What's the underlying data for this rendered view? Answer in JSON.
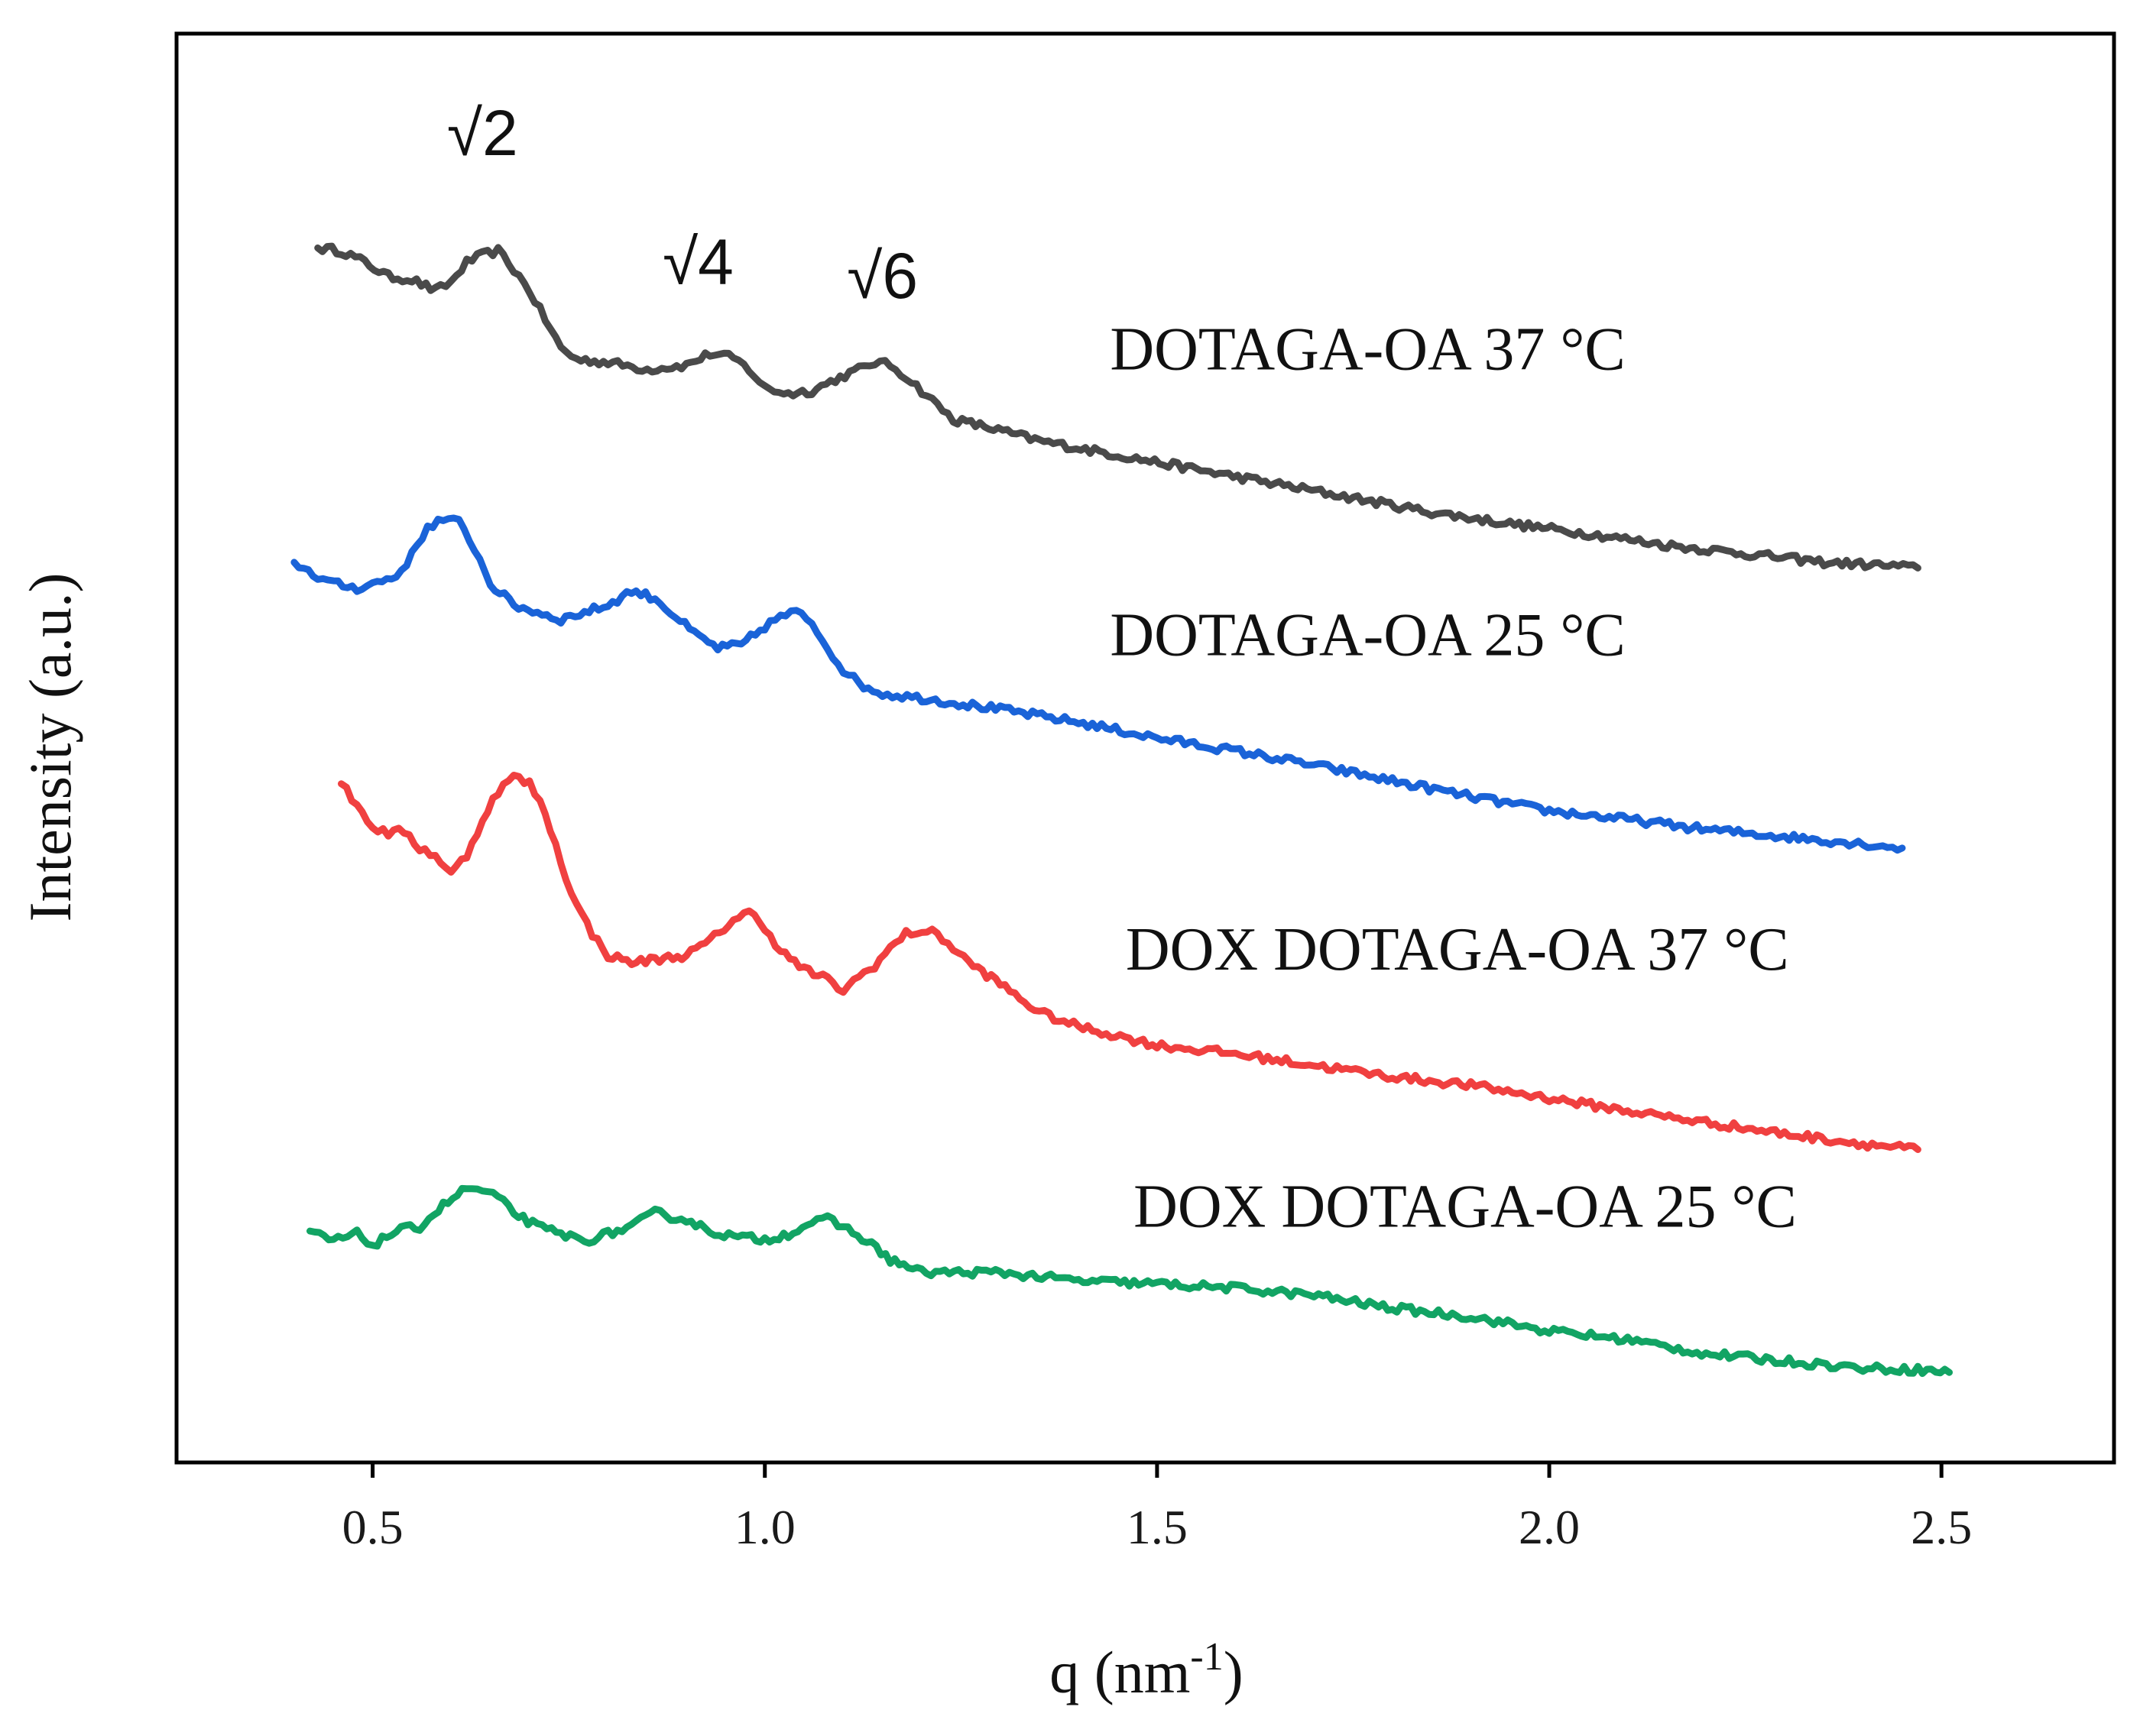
{
  "chart_data": {
    "type": "line",
    "title": "",
    "xlabel": "q (nm",
    "xlabel_sup": "-1",
    "xlabel_close": ")",
    "ylabel": "Intensity (a.u.)",
    "xlim": [
      0.25,
      2.72
    ],
    "ylim": [
      0,
      100
    ],
    "xticks": [
      0.5,
      1.0,
      1.5,
      2.0,
      2.5
    ],
    "xtick_labels": [
      "0.5",
      "1.0",
      "1.5",
      "2.0",
      "2.5"
    ],
    "yticks_shown": false,
    "grid": false,
    "legend": "none",
    "annotations": [
      {
        "text": "√2",
        "x": 0.64,
        "y": 91.5
      },
      {
        "text": "√4",
        "x": 0.915,
        "y": 82.5
      },
      {
        "text": "√6",
        "x": 1.15,
        "y": 81.5
      }
    ],
    "series": [
      {
        "name": "DOTAGA-OA 37 °C",
        "label": "DOTAGA-OA 37 °C",
        "color": "#4a4a4a",
        "label_pos": [
          1.44,
          76.5
        ],
        "x": [
          0.43,
          0.46,
          0.49,
          0.52,
          0.55,
          0.58,
          0.6,
          0.62,
          0.64,
          0.66,
          0.68,
          0.7,
          0.72,
          0.74,
          0.76,
          0.8,
          0.85,
          0.9,
          0.93,
          0.96,
          0.98,
          1.0,
          1.03,
          1.06,
          1.09,
          1.12,
          1.14,
          1.16,
          1.18,
          1.2,
          1.22,
          1.24,
          1.28,
          1.35,
          1.45,
          1.55,
          1.65,
          1.75,
          1.85,
          1.95,
          2.05,
          2.15,
          2.25,
          2.35,
          2.42,
          2.47
        ],
        "y": [
          85.0,
          84.8,
          84.0,
          83.0,
          82.8,
          82.0,
          82.6,
          84.0,
          84.5,
          84.8,
          83.5,
          82.0,
          80.0,
          78.0,
          77.2,
          77.0,
          76.5,
          76.8,
          77.6,
          77.3,
          76.5,
          75.2,
          74.8,
          75.0,
          75.8,
          76.5,
          77.0,
          76.8,
          76.0,
          75.0,
          74.0,
          73.0,
          72.5,
          71.5,
          70.5,
          69.5,
          68.5,
          67.5,
          66.5,
          65.7,
          65.0,
          64.2,
          63.6,
          63.0,
          62.8,
          62.6
        ]
      },
      {
        "name": "DOTAGA-OA 25 °C",
        "label": "DOTAGA-OA 25 °C",
        "color": "#1a63d8",
        "label_pos": [
          1.44,
          56.5
        ],
        "x": [
          0.4,
          0.43,
          0.45,
          0.48,
          0.5,
          0.53,
          0.55,
          0.57,
          0.59,
          0.61,
          0.63,
          0.65,
          0.68,
          0.71,
          0.74,
          0.77,
          0.8,
          0.83,
          0.86,
          0.88,
          0.91,
          0.94,
          0.97,
          1.0,
          1.02,
          1.04,
          1.06,
          1.08,
          1.1,
          1.12,
          1.15,
          1.2,
          1.3,
          1.4,
          1.5,
          1.6,
          1.7,
          1.8,
          1.9,
          2.0,
          2.1,
          2.2,
          2.3,
          2.4,
          2.45
        ],
        "y": [
          63.0,
          62.0,
          61.5,
          61.2,
          61.5,
          62.0,
          63.5,
          65.5,
          66.0,
          65.8,
          64.0,
          61.5,
          60.0,
          59.5,
          59.0,
          59.5,
          60.0,
          61.0,
          60.5,
          59.5,
          58.0,
          57.0,
          57.2,
          58.5,
          59.2,
          59.5,
          58.8,
          57.0,
          55.5,
          54.5,
          53.8,
          53.5,
          52.7,
          51.8,
          50.7,
          49.8,
          48.8,
          47.7,
          46.6,
          45.6,
          45.0,
          44.3,
          43.8,
          43.3,
          43.0
        ]
      },
      {
        "name": "DOX DOTAGA-OA 37 °C",
        "label": "DOX DOTAGA-OA 37 °C",
        "color": "#f04040",
        "label_pos": [
          1.46,
          34.5
        ],
        "x": [
          0.46,
          0.48,
          0.5,
          0.52,
          0.54,
          0.56,
          0.58,
          0.6,
          0.62,
          0.64,
          0.66,
          0.68,
          0.7,
          0.72,
          0.74,
          0.76,
          0.78,
          0.8,
          0.83,
          0.86,
          0.9,
          0.93,
          0.96,
          0.98,
          1.0,
          1.02,
          1.05,
          1.08,
          1.1,
          1.12,
          1.14,
          1.16,
          1.18,
          1.2,
          1.22,
          1.24,
          1.26,
          1.3,
          1.35,
          1.4,
          1.5,
          1.6,
          1.7,
          1.8,
          1.9,
          2.0,
          2.1,
          2.2,
          2.3,
          2.4,
          2.47
        ],
        "y": [
          47.5,
          46.0,
          44.5,
          44.0,
          44.2,
          43.0,
          42.5,
          41.2,
          42.5,
          45.0,
          47.0,
          48.0,
          47.5,
          45.5,
          42.0,
          39.0,
          37.0,
          35.5,
          35.0,
          35.2,
          35.5,
          36.5,
          38.0,
          38.5,
          37.5,
          35.8,
          34.5,
          33.8,
          33.0,
          34.0,
          34.8,
          36.0,
          37.0,
          37.2,
          37.0,
          36.0,
          35.0,
          33.5,
          31.5,
          30.5,
          29.2,
          28.6,
          27.8,
          27.0,
          26.4,
          25.5,
          24.6,
          23.8,
          23.0,
          22.3,
          21.9
        ]
      },
      {
        "name": "DOX DOTAGA-OA 25 °C",
        "label": "DOX DOTAGA-OA 25 °C",
        "color": "#12a464",
        "label_pos": [
          1.47,
          16.5
        ],
        "x": [
          0.42,
          0.45,
          0.48,
          0.5,
          0.53,
          0.56,
          0.59,
          0.62,
          0.64,
          0.66,
          0.68,
          0.71,
          0.74,
          0.77,
          0.8,
          0.83,
          0.86,
          0.88,
          0.9,
          0.93,
          0.96,
          1.0,
          1.03,
          1.06,
          1.08,
          1.1,
          1.13,
          1.16,
          1.2,
          1.3,
          1.4,
          1.5,
          1.6,
          1.7,
          1.8,
          1.9,
          2.0,
          2.1,
          2.2,
          2.3,
          2.4,
          2.47,
          2.51
        ],
        "y": [
          16.2,
          15.5,
          16.0,
          15.2,
          16.2,
          16.5,
          18.0,
          19.2,
          19.0,
          18.5,
          17.5,
          16.5,
          16.0,
          15.5,
          16.0,
          16.5,
          17.5,
          17.2,
          17.0,
          16.2,
          15.8,
          15.6,
          16.0,
          16.8,
          17.0,
          16.5,
          15.5,
          14.2,
          13.3,
          13.3,
          12.7,
          12.5,
          12.2,
          11.7,
          10.8,
          10.2,
          9.2,
          8.6,
          7.6,
          7.1,
          6.6,
          6.5,
          6.3
        ]
      }
    ]
  }
}
